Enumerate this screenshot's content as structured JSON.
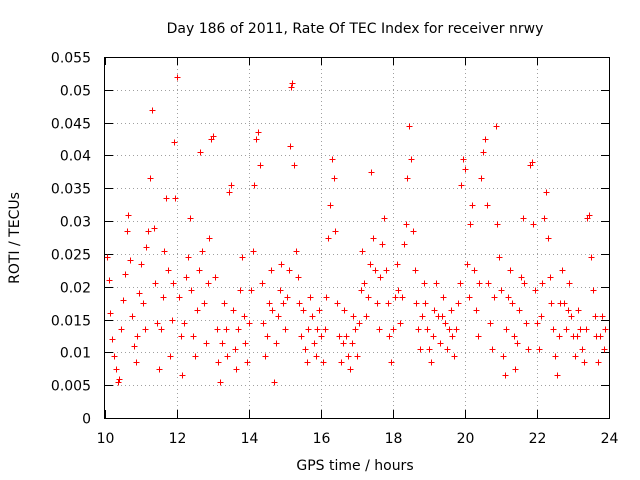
{
  "chart_data": {
    "type": "scatter",
    "title": "Day 186 of 2011, Rate Of TEC Index for receiver nrwy",
    "xlabel": "GPS time / hours",
    "ylabel": "ROTI / TECUs",
    "xlim": [
      10,
      24
    ],
    "ylim": [
      0,
      0.055
    ],
    "xticks": [
      10,
      12,
      14,
      16,
      18,
      20,
      22,
      24
    ],
    "xtick_labels": [
      "10",
      "12",
      "14",
      "16",
      "18",
      "20",
      "22",
      "24"
    ],
    "yticks": [
      0,
      0.005,
      0.01,
      0.015,
      0.02,
      0.025,
      0.03,
      0.035,
      0.04,
      0.045,
      0.05,
      0.055
    ],
    "ytick_labels": [
      "0",
      "0.005",
      "0.01",
      "0.015",
      "0.02",
      "0.025",
      "0.03",
      "0.035",
      "0.04",
      "0.045",
      "0.05",
      "0.055"
    ],
    "grid": true,
    "marker": "+",
    "series": [
      {
        "name": "ROTI",
        "color": "#ff0000",
        "note": "dense point cloud; representative estimated samples",
        "points": [
          [
            10.05,
            0.0245
          ],
          [
            10.1,
            0.021
          ],
          [
            10.15,
            0.016
          ],
          [
            10.2,
            0.012
          ],
          [
            10.25,
            0.0095
          ],
          [
            10.3,
            0.0075
          ],
          [
            10.35,
            0.0055
          ],
          [
            10.4,
            0.006
          ],
          [
            10.45,
            0.0135
          ],
          [
            10.5,
            0.018
          ],
          [
            10.55,
            0.022
          ],
          [
            10.6,
            0.0285
          ],
          [
            10.65,
            0.031
          ],
          [
            10.7,
            0.024
          ],
          [
            10.75,
            0.0155
          ],
          [
            10.8,
            0.011
          ],
          [
            10.85,
            0.0085
          ],
          [
            10.9,
            0.0125
          ],
          [
            10.95,
            0.019
          ],
          [
            11.0,
            0.0235
          ],
          [
            11.05,
            0.0175
          ],
          [
            11.1,
            0.0135
          ],
          [
            11.15,
            0.026
          ],
          [
            11.2,
            0.0285
          ],
          [
            11.25,
            0.0365
          ],
          [
            11.3,
            0.047
          ],
          [
            11.35,
            0.029
          ],
          [
            11.4,
            0.0205
          ],
          [
            11.45,
            0.0145
          ],
          [
            11.5,
            0.0075
          ],
          [
            11.55,
            0.0135
          ],
          [
            11.6,
            0.0185
          ],
          [
            11.65,
            0.0255
          ],
          [
            11.7,
            0.0335
          ],
          [
            11.75,
            0.0225
          ],
          [
            11.8,
            0.0095
          ],
          [
            11.85,
            0.015
          ],
          [
            11.9,
            0.0205
          ],
          [
            11.95,
            0.0335
          ],
          [
            12.0,
            0.052
          ],
          [
            11.92,
            0.042
          ],
          [
            12.05,
            0.0185
          ],
          [
            12.1,
            0.0125
          ],
          [
            12.15,
            0.0065
          ],
          [
            12.2,
            0.0145
          ],
          [
            12.25,
            0.0215
          ],
          [
            12.3,
            0.0245
          ],
          [
            12.35,
            0.0305
          ],
          [
            12.4,
            0.0195
          ],
          [
            12.45,
            0.0125
          ],
          [
            12.5,
            0.0095
          ],
          [
            12.55,
            0.0165
          ],
          [
            12.6,
            0.0225
          ],
          [
            12.65,
            0.0405
          ],
          [
            12.7,
            0.0255
          ],
          [
            12.75,
            0.0175
          ],
          [
            12.8,
            0.0115
          ],
          [
            12.85,
            0.0205
          ],
          [
            12.9,
            0.0275
          ],
          [
            12.95,
            0.0425
          ],
          [
            13.0,
            0.043
          ],
          [
            13.05,
            0.0215
          ],
          [
            13.1,
            0.0135
          ],
          [
            13.15,
            0.0085
          ],
          [
            13.2,
            0.0055
          ],
          [
            13.25,
            0.0115
          ],
          [
            13.3,
            0.0175
          ],
          [
            13.35,
            0.0135
          ],
          [
            13.4,
            0.0095
          ],
          [
            13.45,
            0.0345
          ],
          [
            13.5,
            0.0355
          ],
          [
            13.55,
            0.0165
          ],
          [
            13.6,
            0.0105
          ],
          [
            13.65,
            0.0075
          ],
          [
            13.7,
            0.0135
          ],
          [
            13.75,
            0.0195
          ],
          [
            13.8,
            0.0245
          ],
          [
            13.85,
            0.0155
          ],
          [
            13.9,
            0.0115
          ],
          [
            13.95,
            0.0085
          ],
          [
            14.0,
            0.0145
          ],
          [
            14.05,
            0.0195
          ],
          [
            14.1,
            0.0255
          ],
          [
            14.15,
            0.0355
          ],
          [
            14.2,
            0.0425
          ],
          [
            14.25,
            0.0435
          ],
          [
            14.3,
            0.0385
          ],
          [
            14.35,
            0.0205
          ],
          [
            14.4,
            0.0145
          ],
          [
            14.45,
            0.0095
          ],
          [
            14.5,
            0.0125
          ],
          [
            14.55,
            0.0175
          ],
          [
            14.6,
            0.0225
          ],
          [
            14.65,
            0.0165
          ],
          [
            14.7,
            0.0055
          ],
          [
            14.75,
            0.0115
          ],
          [
            14.8,
            0.0155
          ],
          [
            14.85,
            0.0195
          ],
          [
            14.9,
            0.0235
          ],
          [
            14.95,
            0.0175
          ],
          [
            15.0,
            0.0135
          ],
          [
            15.05,
            0.0185
          ],
          [
            15.1,
            0.0225
          ],
          [
            15.15,
            0.0415
          ],
          [
            15.18,
            0.0505
          ],
          [
            15.2,
            0.051
          ],
          [
            15.25,
            0.0385
          ],
          [
            15.3,
            0.0255
          ],
          [
            15.35,
            0.0215
          ],
          [
            15.4,
            0.0175
          ],
          [
            15.45,
            0.0125
          ],
          [
            15.5,
            0.0165
          ],
          [
            15.55,
            0.0105
          ],
          [
            15.6,
            0.0085
          ],
          [
            15.65,
            0.0135
          ],
          [
            15.7,
            0.0185
          ],
          [
            15.75,
            0.0155
          ],
          [
            15.8,
            0.0115
          ],
          [
            15.85,
            0.0095
          ],
          [
            15.9,
            0.0135
          ],
          [
            15.95,
            0.0165
          ],
          [
            16.0,
            0.0125
          ],
          [
            16.05,
            0.0085
          ],
          [
            16.1,
            0.0135
          ],
          [
            16.15,
            0.0185
          ],
          [
            16.2,
            0.0275
          ],
          [
            16.25,
            0.0325
          ],
          [
            16.3,
            0.0395
          ],
          [
            16.35,
            0.0365
          ],
          [
            16.4,
            0.0285
          ],
          [
            16.45,
            0.0175
          ],
          [
            16.5,
            0.0125
          ],
          [
            16.55,
            0.0085
          ],
          [
            16.6,
            0.0115
          ],
          [
            16.65,
            0.0165
          ],
          [
            16.7,
            0.0125
          ],
          [
            16.75,
            0.0095
          ],
          [
            16.8,
            0.0075
          ],
          [
            16.85,
            0.0115
          ],
          [
            16.9,
            0.0155
          ],
          [
            16.95,
            0.0135
          ],
          [
            17.0,
            0.0095
          ],
          [
            17.05,
            0.0145
          ],
          [
            17.1,
            0.0195
          ],
          [
            17.15,
            0.0255
          ],
          [
            17.2,
            0.0205
          ],
          [
            17.25,
            0.0155
          ],
          [
            17.3,
            0.0185
          ],
          [
            17.35,
            0.0235
          ],
          [
            17.4,
            0.0375
          ],
          [
            17.45,
            0.0275
          ],
          [
            17.5,
            0.0225
          ],
          [
            17.55,
            0.0175
          ],
          [
            17.6,
            0.0135
          ],
          [
            17.65,
            0.0215
          ],
          [
            17.7,
            0.0265
          ],
          [
            17.75,
            0.0305
          ],
          [
            17.8,
            0.0225
          ],
          [
            17.85,
            0.0175
          ],
          [
            17.9,
            0.0125
          ],
          [
            17.95,
            0.0085
          ],
          [
            18.0,
            0.0135
          ],
          [
            18.05,
            0.0185
          ],
          [
            18.1,
            0.0235
          ],
          [
            18.15,
            0.0195
          ],
          [
            18.2,
            0.0145
          ],
          [
            18.25,
            0.0185
          ],
          [
            18.3,
            0.0265
          ],
          [
            18.35,
            0.0295
          ],
          [
            18.4,
            0.0365
          ],
          [
            18.45,
            0.0445
          ],
          [
            18.5,
            0.0395
          ],
          [
            18.55,
            0.0285
          ],
          [
            18.6,
            0.0225
          ],
          [
            18.65,
            0.0175
          ],
          [
            18.7,
            0.0135
          ],
          [
            18.75,
            0.0105
          ],
          [
            18.8,
            0.0155
          ],
          [
            18.85,
            0.0205
          ],
          [
            18.9,
            0.0175
          ],
          [
            18.95,
            0.0135
          ],
          [
            19.0,
            0.0105
          ],
          [
            19.05,
            0.0085
          ],
          [
            19.1,
            0.0125
          ],
          [
            19.15,
            0.0165
          ],
          [
            19.2,
            0.0205
          ],
          [
            19.25,
            0.0155
          ],
          [
            19.3,
            0.0115
          ],
          [
            19.35,
            0.0155
          ],
          [
            19.4,
            0.0185
          ],
          [
            19.45,
            0.0145
          ],
          [
            19.5,
            0.0105
          ],
          [
            19.55,
            0.0135
          ],
          [
            19.6,
            0.0165
          ],
          [
            19.65,
            0.0125
          ],
          [
            19.7,
            0.0095
          ],
          [
            19.75,
            0.0135
          ],
          [
            19.8,
            0.0175
          ],
          [
            19.85,
            0.0205
          ],
          [
            19.9,
            0.0355
          ],
          [
            19.95,
            0.0395
          ],
          [
            20.0,
            0.038
          ],
          [
            20.05,
            0.0235
          ],
          [
            20.1,
            0.0185
          ],
          [
            20.15,
            0.0295
          ],
          [
            20.2,
            0.0325
          ],
          [
            20.25,
            0.0225
          ],
          [
            20.3,
            0.0165
          ],
          [
            20.35,
            0.0125
          ],
          [
            20.4,
            0.0205
          ],
          [
            20.45,
            0.0365
          ],
          [
            20.5,
            0.0405
          ],
          [
            20.55,
            0.0425
          ],
          [
            20.6,
            0.0325
          ],
          [
            20.65,
            0.0205
          ],
          [
            20.7,
            0.0145
          ],
          [
            20.75,
            0.0105
          ],
          [
            20.8,
            0.0185
          ],
          [
            20.85,
            0.0445
          ],
          [
            20.9,
            0.0295
          ],
          [
            20.95,
            0.0245
          ],
          [
            21.0,
            0.0195
          ],
          [
            21.05,
            0.0095
          ],
          [
            21.1,
            0.0065
          ],
          [
            21.15,
            0.0135
          ],
          [
            21.2,
            0.0185
          ],
          [
            21.25,
            0.0225
          ],
          [
            21.3,
            0.0175
          ],
          [
            21.35,
            0.0125
          ],
          [
            21.4,
            0.0075
          ],
          [
            21.45,
            0.0115
          ],
          [
            21.5,
            0.0165
          ],
          [
            21.55,
            0.0215
          ],
          [
            21.6,
            0.0305
          ],
          [
            21.65,
            0.0205
          ],
          [
            21.7,
            0.0145
          ],
          [
            21.75,
            0.0105
          ],
          [
            21.8,
            0.0385
          ],
          [
            21.85,
            0.039
          ],
          [
            21.9,
            0.0295
          ],
          [
            21.95,
            0.0195
          ],
          [
            22.0,
            0.0145
          ],
          [
            22.05,
            0.0105
          ],
          [
            22.1,
            0.0155
          ],
          [
            22.15,
            0.0205
          ],
          [
            22.2,
            0.0305
          ],
          [
            22.25,
            0.0345
          ],
          [
            22.3,
            0.0275
          ],
          [
            22.35,
            0.0215
          ],
          [
            22.4,
            0.0175
          ],
          [
            22.45,
            0.0135
          ],
          [
            22.5,
            0.0095
          ],
          [
            22.55,
            0.0065
          ],
          [
            22.6,
            0.0125
          ],
          [
            22.65,
            0.0175
          ],
          [
            22.7,
            0.0225
          ],
          [
            22.75,
            0.0175
          ],
          [
            22.8,
            0.0135
          ],
          [
            22.85,
            0.0165
          ],
          [
            22.9,
            0.0205
          ],
          [
            22.95,
            0.0155
          ],
          [
            23.0,
            0.0125
          ],
          [
            23.05,
            0.0095
          ],
          [
            23.1,
            0.0125
          ],
          [
            23.15,
            0.0165
          ],
          [
            23.2,
            0.0135
          ],
          [
            23.25,
            0.0105
          ],
          [
            23.3,
            0.0085
          ],
          [
            23.35,
            0.0135
          ],
          [
            23.4,
            0.0305
          ],
          [
            23.45,
            0.031
          ],
          [
            23.5,
            0.0245
          ],
          [
            23.55,
            0.0195
          ],
          [
            23.6,
            0.0155
          ],
          [
            23.65,
            0.0125
          ],
          [
            23.7,
            0.0085
          ],
          [
            23.75,
            0.0125
          ],
          [
            23.8,
            0.0155
          ],
          [
            23.85,
            0.0105
          ],
          [
            23.9,
            0.0135
          ]
        ]
      }
    ]
  }
}
